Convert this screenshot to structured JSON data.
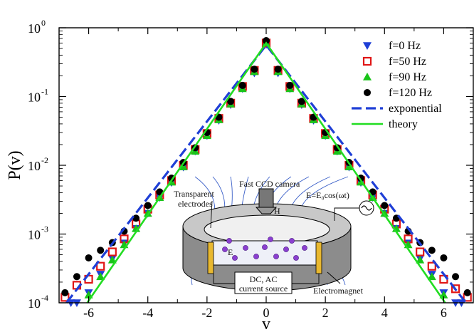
{
  "chart_data": {
    "type": "scatter",
    "xlabel": "v",
    "ylabel": "P(v)",
    "xlim": [
      -7,
      7
    ],
    "ylim": [
      0.0001,
      1
    ],
    "yscale": "log",
    "grid": false,
    "legend_position": "top-right",
    "x_ticks": [
      "-6",
      "-4",
      "-2",
      "0",
      "2",
      "4",
      "6"
    ],
    "y_ticks": [
      {
        "base": "10",
        "exp": "-4"
      },
      {
        "base": "10",
        "exp": "-3"
      },
      {
        "base": "10",
        "exp": "-2"
      },
      {
        "base": "10",
        "exp": "-1"
      },
      {
        "base": "10",
        "exp": "0"
      }
    ],
    "series": [
      {
        "name": "f=0 Hz",
        "marker": "triangle-down",
        "color": "#1f3fd6",
        "x": [
          -6.6,
          -6.4,
          -6.0,
          -5.6,
          -5.2,
          -4.8,
          -4.4,
          -4.0,
          -3.6,
          -3.2,
          -2.8,
          -2.4,
          -2.0,
          -1.6,
          -1.2,
          -0.8,
          -0.4,
          0.0,
          0.4,
          0.8,
          1.2,
          1.6,
          2.0,
          2.4,
          2.8,
          3.2,
          3.6,
          4.0,
          4.4,
          4.8,
          5.2,
          5.6,
          6.0,
          6.4,
          6.6
        ],
        "y": [
          0.0001,
          0.0001,
          0.00014,
          0.00026,
          0.00044,
          0.00074,
          0.0012,
          0.002,
          0.0034,
          0.0056,
          0.0094,
          0.016,
          0.027,
          0.045,
          0.076,
          0.13,
          0.22,
          0.57,
          0.22,
          0.13,
          0.076,
          0.045,
          0.027,
          0.016,
          0.0094,
          0.0056,
          0.0034,
          0.002,
          0.0012,
          0.00074,
          0.00044,
          0.00026,
          0.00014,
          0.0001,
          0.0001
        ]
      },
      {
        "name": "f=50 Hz",
        "marker": "square-open",
        "color": "#e01515",
        "x": [
          -6.8,
          -6.4,
          -6.0,
          -5.6,
          -5.2,
          -4.8,
          -4.4,
          -4.0,
          -3.6,
          -3.2,
          -2.8,
          -2.4,
          -2.0,
          -1.6,
          -1.2,
          -0.8,
          -0.4,
          0.0,
          0.4,
          0.8,
          1.2,
          1.6,
          2.0,
          2.4,
          2.8,
          3.2,
          3.6,
          4.0,
          4.4,
          4.8,
          5.2,
          5.6,
          6.0,
          6.4,
          6.8
        ],
        "y": [
          0.00012,
          0.00018,
          0.00022,
          0.00034,
          0.00055,
          0.00085,
          0.0014,
          0.0023,
          0.0037,
          0.006,
          0.01,
          0.017,
          0.029,
          0.048,
          0.08,
          0.14,
          0.24,
          0.6,
          0.24,
          0.14,
          0.08,
          0.048,
          0.029,
          0.017,
          0.01,
          0.006,
          0.0037,
          0.0023,
          0.0014,
          0.00085,
          0.00055,
          0.00034,
          0.00022,
          0.00016,
          0.00012
        ]
      },
      {
        "name": "f=90 Hz",
        "marker": "triangle-up",
        "color": "#19c419",
        "x": [
          -6.0,
          -5.6,
          -5.2,
          -4.8,
          -4.4,
          -4.0,
          -3.6,
          -3.2,
          -2.8,
          -2.4,
          -2.0,
          -1.6,
          -1.2,
          -0.8,
          -0.4,
          0.0,
          0.4,
          0.8,
          1.2,
          1.6,
          2.0,
          2.4,
          2.8,
          3.2,
          3.6,
          4.0,
          4.4,
          4.8,
          5.2,
          5.6,
          6.0
        ],
        "y": [
          0.00013,
          0.00024,
          0.00042,
          0.0007,
          0.0012,
          0.002,
          0.0034,
          0.0057,
          0.0095,
          0.016,
          0.027,
          0.046,
          0.078,
          0.13,
          0.23,
          0.6,
          0.23,
          0.13,
          0.078,
          0.046,
          0.027,
          0.016,
          0.0095,
          0.0057,
          0.0034,
          0.002,
          0.0012,
          0.0007,
          0.00042,
          0.00024,
          0.00013
        ]
      },
      {
        "name": "f=120 Hz",
        "marker": "circle",
        "color": "#000000",
        "x": [
          -6.8,
          -6.4,
          -6.0,
          -5.6,
          -5.2,
          -4.8,
          -4.4,
          -4.0,
          -3.6,
          -3.2,
          -2.8,
          -2.4,
          -2.0,
          -1.6,
          -1.2,
          -0.8,
          -0.4,
          0.0,
          0.4,
          0.8,
          1.2,
          1.6,
          2.0,
          2.4,
          2.8,
          3.2,
          3.6,
          4.0,
          4.4,
          4.8,
          5.2,
          5.6,
          6.0,
          6.4,
          6.8
        ],
        "y": [
          0.00014,
          0.00024,
          0.00045,
          0.00058,
          0.00075,
          0.0011,
          0.0017,
          0.0026,
          0.0041,
          0.0065,
          0.011,
          0.018,
          0.03,
          0.05,
          0.085,
          0.145,
          0.25,
          0.65,
          0.25,
          0.145,
          0.085,
          0.05,
          0.03,
          0.018,
          0.011,
          0.0065,
          0.0041,
          0.0026,
          0.0017,
          0.0011,
          0.00075,
          0.00058,
          0.00045,
          0.00024,
          0.00014
        ]
      },
      {
        "name": "exponential",
        "marker": "line-dashed",
        "color": "#1f3fd6",
        "x": [
          -6.75,
          0,
          6.75
        ],
        "y": [
          0.0001,
          0.56,
          0.0001
        ]
      },
      {
        "name": "theory",
        "marker": "line-solid",
        "color": "#22dd22",
        "x": [
          -6.05,
          0,
          6.05
        ],
        "y": [
          0.0001,
          0.6,
          0.0001
        ]
      }
    ],
    "inset": {
      "labels": {
        "camera": "Fast CCD camera",
        "electrodes": "Transparent electrodes",
        "field_h": "H",
        "field_e": "E",
        "formula": "E=E₀cos(ωt)",
        "source": "DC, AC current source",
        "magnet": "Electromagnet"
      }
    }
  }
}
